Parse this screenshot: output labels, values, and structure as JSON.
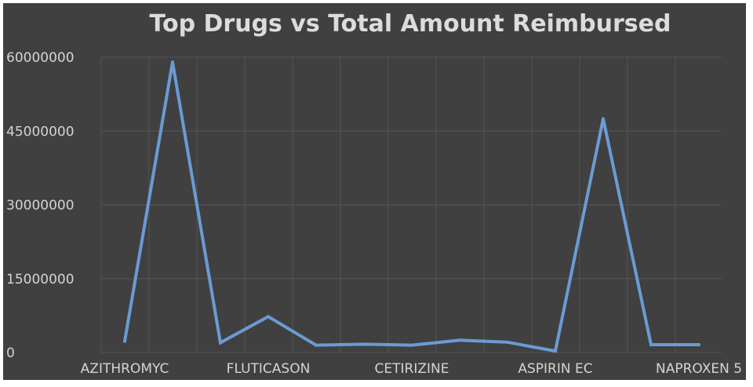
{
  "chart_data": {
    "type": "line",
    "title": "Top Drugs vs Total Amount Reimbursed",
    "xlabel": "",
    "ylabel": "",
    "ylim": [
      0,
      60000000
    ],
    "y_ticks": [
      0,
      15000000,
      30000000,
      45000000,
      60000000
    ],
    "y_tick_labels": [
      "0",
      "15000000",
      "30000000",
      "45000000",
      "60000000"
    ],
    "x_tick_labels": [
      "AZITHROMYC",
      "FLUTICASON",
      "CETIRIZINE",
      "ASPIRIN EC",
      "NAPROXEN 5"
    ],
    "x_tick_label_indices": [
      0,
      3,
      6,
      9,
      12
    ],
    "point_count": 13,
    "series": [
      {
        "values": [
          2300000,
          59000000,
          2000000,
          7300000,
          1500000,
          1700000,
          1500000,
          2500000,
          2100000,
          300000,
          47500000,
          1600000,
          1600000
        ]
      }
    ],
    "grid": true,
    "legend": "none",
    "colors": {
      "background": "#404040",
      "line": "#6a9bd4",
      "grid": "#555555",
      "text": "#d4d4d4"
    }
  }
}
